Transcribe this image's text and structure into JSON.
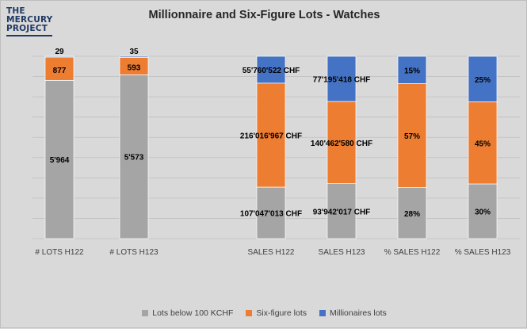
{
  "logo": {
    "line1": "THE",
    "line2": "MERCURY",
    "line3": "PROJECT"
  },
  "colors": {
    "below": "#a5a5a5",
    "six": "#ed7d31",
    "mill": "#4472c4"
  },
  "chart_data": {
    "type": "bar",
    "stacked": true,
    "normalized_per_category": true,
    "title": "Millionnaire and Six-Figure Lots - Watches",
    "categories": [
      "# LOTS H122",
      "# LOTS H123",
      "SALES H122",
      "SALES H123",
      "% SALES H122",
      "% SALES H123"
    ],
    "series": [
      {
        "name": "Lots below 100 KCHF",
        "values": [
          5964,
          5573,
          107047013,
          93942017,
          28,
          30
        ],
        "labels": [
          "5'964",
          "5'573",
          "107'047'013 CHF",
          "93'942'017 CHF",
          "28%",
          "30%"
        ]
      },
      {
        "name": "Six-figure lots",
        "values": [
          877,
          593,
          216016967,
          140462580,
          57,
          45
        ],
        "labels": [
          "877",
          "593",
          "216'016'967 CHF",
          "140'462'580 CHF",
          "57%",
          "45%"
        ]
      },
      {
        "name": "Millionaires lots",
        "values": [
          29,
          35,
          55760522,
          77195418,
          15,
          25
        ],
        "labels": [
          "29",
          "35",
          "55'760'522 CHF",
          "77'195'418 CHF",
          "15%",
          "25%"
        ]
      }
    ],
    "grid": true,
    "legend_position": "bottom"
  }
}
